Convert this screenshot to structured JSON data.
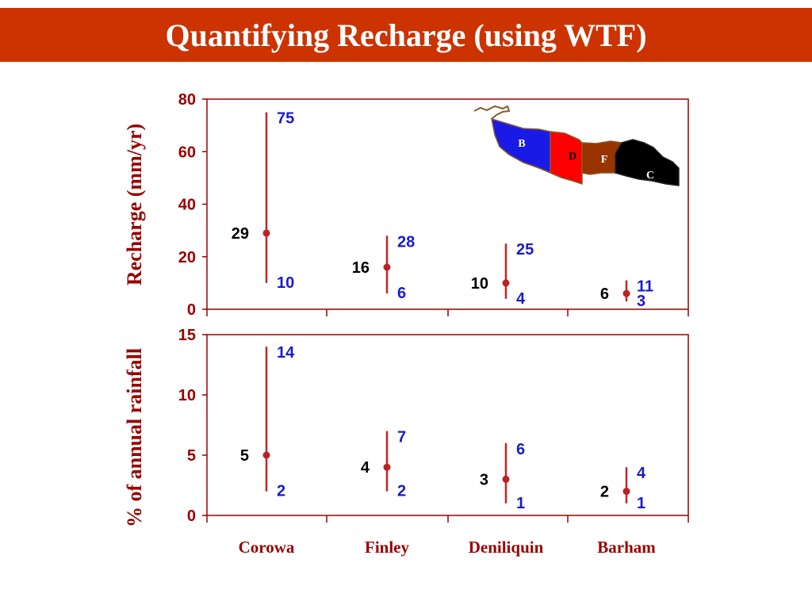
{
  "title": "Quantifying Recharge (using WTF)",
  "colors": {
    "banner": "#cc3300",
    "axis": "#990000",
    "range_line": "#cc2222",
    "mean_label": "#000000",
    "range_label": "#1a1acc"
  },
  "chart_data": [
    {
      "type": "range",
      "ylabel": "Recharge (mm/yr)",
      "ylim": [
        0,
        80
      ],
      "yticks": [
        0,
        20,
        40,
        60,
        80
      ],
      "categories": [
        "Corowa",
        "Finley",
        "Deniliquin",
        "Barham"
      ],
      "mean": [
        29,
        16,
        10,
        6
      ],
      "max": [
        75,
        28,
        25,
        11
      ],
      "min": [
        10,
        6,
        4,
        3
      ],
      "inset_map": {
        "zones": [
          "B",
          "D",
          "F",
          "C"
        ],
        "zone_colors": [
          "#1a1ae6",
          "#ff0000",
          "#993300",
          "#000000"
        ]
      }
    },
    {
      "type": "range",
      "ylabel": "% of annual rainfall",
      "ylim": [
        0,
        15
      ],
      "yticks": [
        0,
        5,
        10,
        15
      ],
      "categories": [
        "Corowa",
        "Finley",
        "Deniliquin",
        "Barham"
      ],
      "mean": [
        5,
        4,
        3,
        2
      ],
      "max": [
        14,
        7,
        6,
        4
      ],
      "min": [
        2,
        2,
        1,
        1
      ]
    }
  ]
}
